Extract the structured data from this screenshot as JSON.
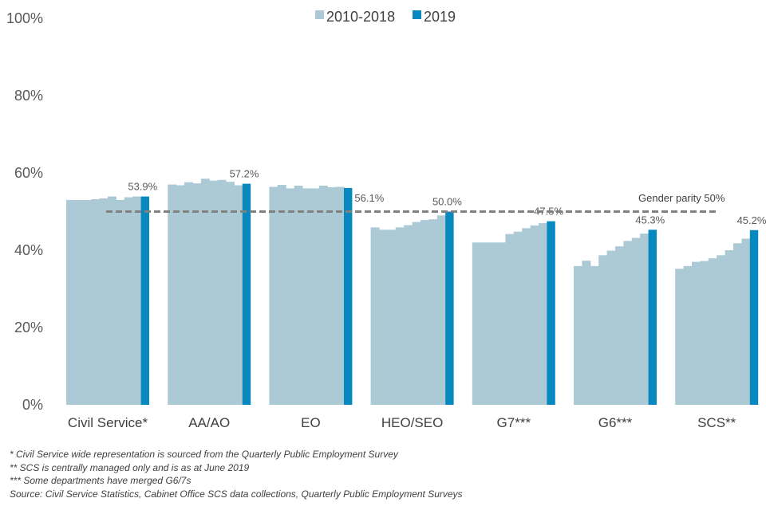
{
  "chart_data": {
    "type": "bar",
    "title": "",
    "xlabel": "",
    "ylabel": "",
    "ylim": [
      0,
      100
    ],
    "yticks": [
      0,
      20,
      40,
      60,
      80,
      100
    ],
    "ytick_labels": [
      "0%",
      "20%",
      "40%",
      "60%",
      "80%",
      "100%"
    ],
    "categories": [
      "Civil Service*",
      "AA/AO",
      "EO",
      "HEO/SEO",
      "G7***",
      "G6***",
      "SCS**"
    ],
    "legend": [
      {
        "name": "2010-2018",
        "color": "#abcad6"
      },
      {
        "name": "2019",
        "color": "#0789c0"
      }
    ],
    "series": [
      {
        "name": "2010-2018",
        "color": "#abcad6",
        "values": [
          [
            53.0,
            53.0,
            53.0,
            53.2,
            53.4,
            53.9,
            53.0,
            53.7,
            53.9
          ],
          [
            57.0,
            56.8,
            57.6,
            57.3,
            58.5,
            58.0,
            58.2,
            57.7,
            56.8
          ],
          [
            56.4,
            56.9,
            56.0,
            56.7,
            56.0,
            56.0,
            56.7,
            56.3,
            56.4
          ],
          [
            45.9,
            45.3,
            45.3,
            45.9,
            46.5,
            47.3,
            47.8,
            48.0,
            49.0
          ],
          [
            42.0,
            42.0,
            42.0,
            42.0,
            44.2,
            44.8,
            45.7,
            46.4,
            47.0
          ],
          [
            35.9,
            37.3,
            35.9,
            38.7,
            39.9,
            41.0,
            42.4,
            43.2,
            44.3
          ],
          [
            35.2,
            35.9,
            37.0,
            37.2,
            37.9,
            38.7,
            40.0,
            41.8,
            43.0
          ]
        ]
      },
      {
        "name": "2019",
        "color": "#0789c0",
        "values": [
          53.9,
          57.2,
          56.1,
          50.0,
          47.5,
          45.3,
          45.2
        ]
      }
    ],
    "data_labels": [
      "53.9%",
      "57.2%",
      "56.1%",
      "50.0%",
      "47.5%",
      "45.3%",
      "45.2%"
    ],
    "reference_line": {
      "value": 50,
      "label": "Gender parity 50%",
      "style": "dashed",
      "color": "#808080"
    }
  },
  "footnotes": [
    "* Civil Service wide representation is sourced from the Quarterly Public Employment Survey",
    "** SCS is centrally managed only and is as at June 2019",
    "*** Some departments have merged G6/7s",
    "Source: Civil Service Statistics, Cabinet Office SCS data collections, Quarterly Public Employment Surveys"
  ]
}
